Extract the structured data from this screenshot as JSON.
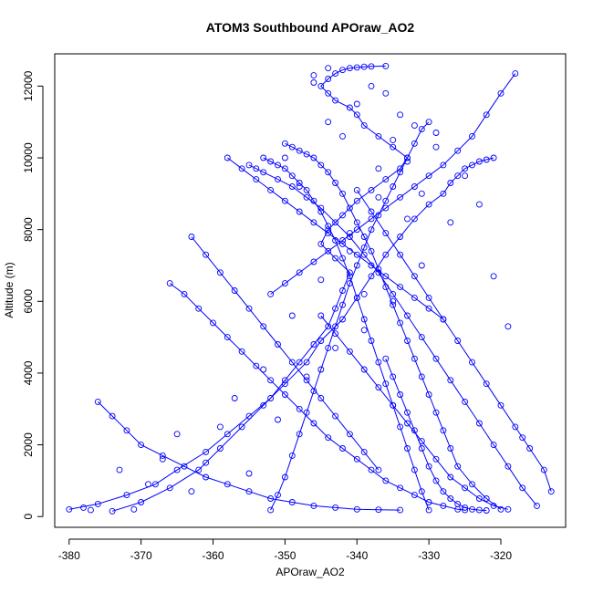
{
  "chart_data": {
    "type": "scatter",
    "title": "ATOM3 Southbound APOraw_AO2",
    "xlabel": "APOraw_AO2",
    "ylabel": "Altitude (m)",
    "xlim": [
      -382,
      -311
    ],
    "ylim": [
      -300,
      12900
    ],
    "xticks": [
      -380,
      -370,
      -360,
      -350,
      -340,
      -330,
      -320
    ],
    "yticks": [
      0,
      2000,
      4000,
      6000,
      8000,
      10000,
      12000
    ],
    "grid": false,
    "legend": "none",
    "marker": "open-circle",
    "connect_points": true,
    "colors": {
      "series": "#0000ff",
      "axes": "#000000"
    },
    "series": [
      {
        "profiles": [
          {
            "x": [
              -380,
              -376,
              -372,
              -368,
              -365,
              -361,
              -358,
              -355,
              -352,
              -350,
              -348,
              -346,
              -344,
              -343,
              -342,
              -341,
              -343,
              -345,
              -344,
              -342,
              -340,
              -338,
              -336,
              -334,
              -333,
              -335,
              -337,
              -339,
              -340,
              -341,
              -343,
              -344,
              -345,
              -344,
              -343,
              -342,
              -341,
              -340,
              -339,
              -338,
              -336
            ],
            "y": [
              200,
              350,
              600,
              900,
              1300,
              1800,
              2300,
              2800,
              3300,
              3800,
              4300,
              4800,
              5300,
              5800,
              6300,
              6800,
              7200,
              7600,
              8000,
              8400,
              8800,
              9100,
              9400,
              9700,
              10000,
              10300,
              10600,
              10900,
              11200,
              11400,
              11600,
              11800,
              12000,
              12200,
              12350,
              12450,
              12500,
              12520,
              12540,
              12550,
              12560
            ]
          },
          {
            "x": [
              -374,
              -370,
              -366,
              -362,
              -359,
              -356,
              -353,
              -350,
              -347,
              -345,
              -342,
              -340,
              -338,
              -336,
              -334,
              -332,
              -330,
              -328,
              -327,
              -326,
              -325,
              -324,
              -323,
              -322,
              -321
            ],
            "y": [
              150,
              400,
              800,
              1300,
              1900,
              2500,
              3100,
              3700,
              4300,
              4900,
              5500,
              6100,
              6700,
              7300,
              7800,
              8300,
              8700,
              9000,
              9300,
              9500,
              9700,
              9800,
              9900,
              9950,
              10000
            ]
          },
          {
            "x": [
              -320,
              -322,
              -324,
              -326,
              -327,
              -328,
              -329,
              -330,
              -331,
              -332,
              -333,
              -334,
              -335,
              -336,
              -337,
              -338,
              -339,
              -340,
              -341,
              -342,
              -343,
              -344,
              -345,
              -346,
              -347,
              -348,
              -349,
              -350
            ],
            "y": [
              200,
              500,
              900,
              1400,
              1900,
              2400,
              2900,
              3400,
              3900,
              4400,
              4900,
              5400,
              5900,
              6400,
              6900,
              7400,
              7800,
              8200,
              8600,
              9000,
              9300,
              9600,
              9800,
              10000,
              10100,
              10200,
              10300,
              10400
            ]
          },
          {
            "x": [
              -315,
              -317,
              -319,
              -321,
              -323,
              -325,
              -327,
              -329,
              -331,
              -333,
              -335,
              -337,
              -339,
              -341,
              -343,
              -345,
              -347,
              -349,
              -351,
              -353,
              -354,
              -355
            ],
            "y": [
              300,
              800,
              1400,
              2000,
              2600,
              3200,
              3800,
              4400,
              5000,
              5600,
              6200,
              6800,
              7300,
              7800,
              8200,
              8600,
              8900,
              9200,
              9400,
              9600,
              9700,
              9800
            ]
          },
          {
            "x": [
              -352,
              -351,
              -350,
              -349,
              -348,
              -347,
              -346,
              -345,
              -344,
              -343,
              -342,
              -341,
              -340,
              -339,
              -338,
              -337,
              -336,
              -335,
              -334,
              -333,
              -332,
              -331,
              -330
            ],
            "y": [
              180,
              600,
              1100,
              1700,
              2300,
              2900,
              3500,
              4100,
              4700,
              5300,
              5900,
              6500,
              7000,
              7500,
              8000,
              8400,
              8800,
              9200,
              9600,
              10000,
              10400,
              10800,
              11000
            ]
          },
          {
            "x": [
              -330,
              -331,
              -332,
              -333,
              -334,
              -335,
              -336,
              -337,
              -338,
              -339,
              -340,
              -341,
              -342,
              -343,
              -344,
              -345,
              -346,
              -347,
              -348,
              -349,
              -350,
              -351,
              -352,
              -353
            ],
            "y": [
              180,
              700,
              1300,
              1900,
              2500,
              3100,
              3700,
              4300,
              4900,
              5500,
              6100,
              6700,
              7200,
              7700,
              8100,
              8500,
              8800,
              9100,
              9300,
              9500,
              9700,
              9800,
              9900,
              10000
            ]
          },
          {
            "x": [
              -366,
              -364,
              -362,
              -360,
              -358,
              -356,
              -354,
              -352,
              -350,
              -348,
              -346,
              -344,
              -342,
              -340,
              -338,
              -336,
              -334,
              -332,
              -330,
              -328,
              -326,
              -325
            ],
            "y": [
              6500,
              6200,
              5800,
              5400,
              5000,
              4600,
              4200,
              3800,
              3400,
              3000,
              2600,
              2200,
              1900,
              1600,
              1300,
              1000,
              800,
              600,
              400,
              300,
              200,
              180
            ]
          },
          {
            "x": [
              -318,
              -320,
              -322,
              -324,
              -326,
              -328,
              -330,
              -332,
              -334,
              -336,
              -338,
              -340,
              -342,
              -344,
              -346,
              -348,
              -350,
              -352
            ],
            "y": [
              12350,
              11800,
              11200,
              10600,
              10200,
              9800,
              9500,
              9200,
              8900,
              8600,
              8300,
              8000,
              7700,
              7400,
              7100,
              6800,
              6500,
              6200
            ]
          },
          {
            "x": [
              -376,
              -374,
              -372,
              -370,
              -367,
              -364,
              -361,
              -358,
              -355,
              -352,
              -349,
              -346,
              -343,
              -340,
              -337,
              -334
            ],
            "y": [
              3200,
              2800,
              2400,
              2000,
              1700,
              1400,
              1100,
              900,
              700,
              500,
              400,
              300,
              250,
              200,
              190,
              180
            ]
          },
          {
            "x": [
              -313,
              -314,
              -316,
              -318,
              -320,
              -322,
              -324,
              -326,
              -328,
              -330,
              -332,
              -334,
              -336,
              -338,
              -340
            ],
            "y": [
              700,
              1300,
              1900,
              2500,
              3100,
              3700,
              4300,
              4900,
              5500,
              6100,
              6700,
              7300,
              7900,
              8500,
              9100
            ]
          },
          {
            "x": [
              -363,
              -361,
              -359,
              -357,
              -355,
              -353,
              -351,
              -349,
              -347,
              -345,
              -343,
              -341,
              -339,
              -337
            ],
            "y": [
              7800,
              7300,
              6800,
              6300,
              5800,
              5300,
              4800,
              4300,
              3800,
              3300,
              2800,
              2300,
              1800,
              1300
            ]
          },
          {
            "x": [
              -336,
              -335,
              -334,
              -333,
              -332,
              -331,
              -330,
              -329,
              -328,
              -327,
              -326,
              -325,
              -324,
              -323,
              -322
            ],
            "y": [
              4400,
              3900,
              3400,
              2900,
              2400,
              1900,
              1400,
              1000,
              700,
              500,
              350,
              250,
              200,
              180,
              170
            ]
          },
          {
            "x": [
              -358,
              -356,
              -354,
              -352,
              -350,
              -348,
              -346,
              -344,
              -342,
              -340,
              -338,
              -336,
              -334,
              -332,
              -330,
              -328
            ],
            "y": [
              10000,
              9700,
              9400,
              9100,
              8800,
              8500,
              8200,
              7900,
              7600,
              7300,
              7000,
              6700,
              6400,
              6100,
              5800,
              5500
            ]
          },
          {
            "x": [
              -345,
              -343,
              -341,
              -339,
              -337,
              -335,
              -333,
              -331,
              -329,
              -327,
              -325,
              -323,
              -321,
              -319
            ],
            "y": [
              5600,
              5100,
              4600,
              4100,
              3600,
              3100,
              2600,
              2100,
              1600,
              1100,
              800,
              500,
              300,
              200
            ]
          }
        ],
        "scatter_points": {
          "x": [
            -378,
            -377,
            -373,
            -371,
            -369,
            -367,
            -365,
            -363,
            -361,
            -359,
            -357,
            -355,
            -353,
            -351,
            -349,
            -347,
            -345,
            -343,
            -341,
            -339,
            -337,
            -335,
            -333,
            -331,
            -329,
            -327,
            -325,
            -323,
            -321,
            -319,
            -317,
            -344,
            -342,
            -340,
            -338,
            -336,
            -334,
            -332,
            -346,
            -348,
            -350,
            -341,
            -339,
            -337,
            -335,
            -333,
            -331,
            -329,
            -344,
            -346
          ],
          "y": [
            250,
            180,
            1300,
            200,
            900,
            1600,
            2300,
            700,
            1500,
            2500,
            3300,
            1200,
            4100,
            2700,
            5600,
            3900,
            6600,
            4700,
            7900,
            5200,
            8900,
            6000,
            9900,
            7000,
            10300,
            8200,
            9500,
            8700,
            6700,
            5300,
            2200,
            11000,
            10600,
            11500,
            12000,
            11800,
            11200,
            10900,
            12100,
            9200,
            10000,
            7400,
            6200,
            9700,
            10500,
            8300,
            9000,
            10700,
            12500,
            12300
          ]
        }
      }
    ]
  }
}
